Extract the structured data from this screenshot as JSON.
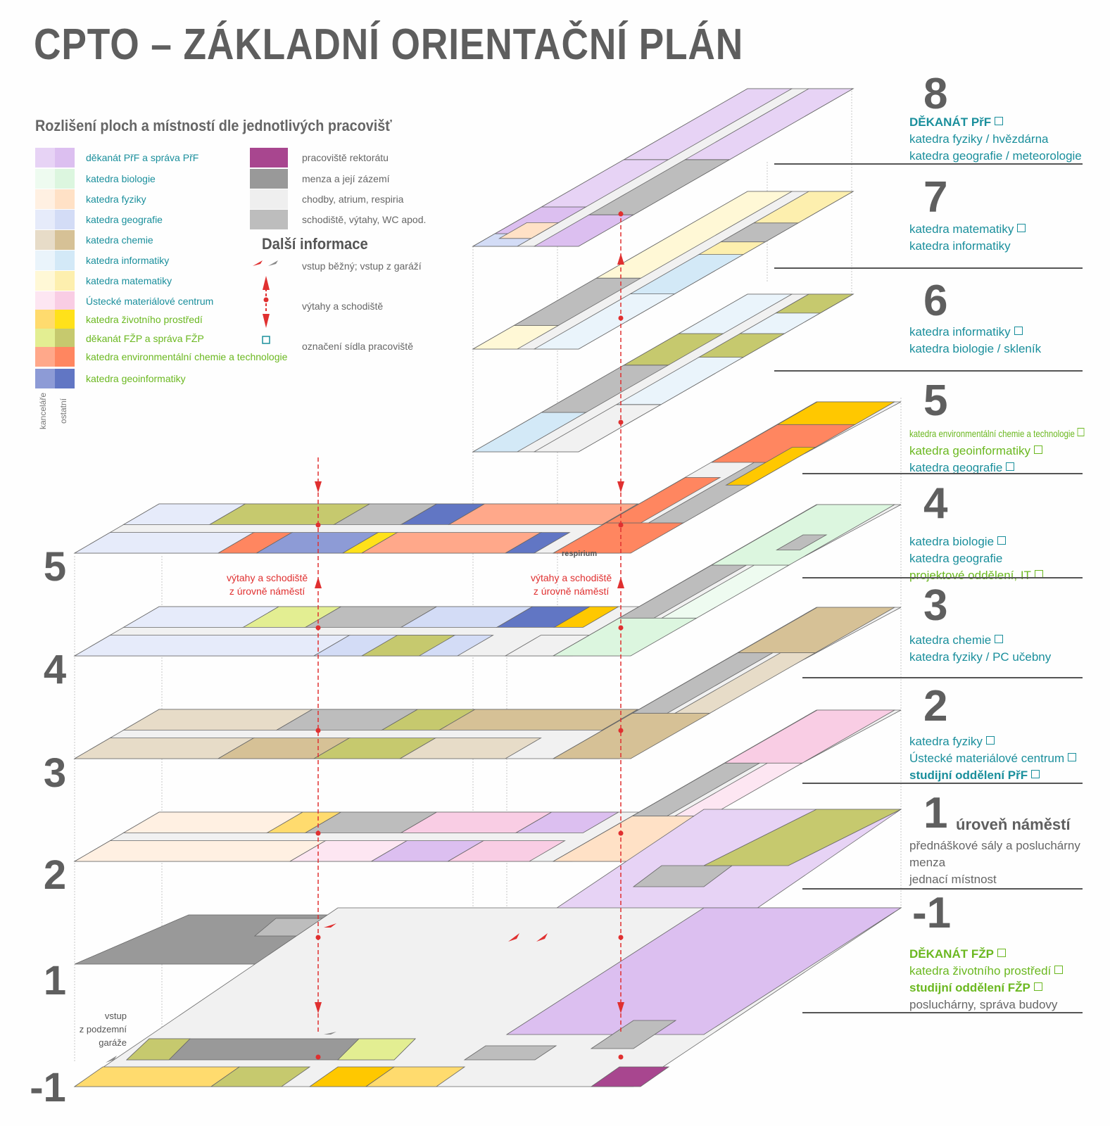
{
  "title": "CPTO – ZÁKLADNÍ ORIENTAČNÍ PLÁN",
  "legend": {
    "heading": "Rozlišení ploch a místností dle jednotlivých pracovišť",
    "col_labels": [
      "kanceláře",
      "ostatní"
    ],
    "items": [
      {
        "label": "děkanát PřF a správa PřF",
        "c1": "#e7d3f5",
        "c2": "#dcbff0",
        "tone": "teal"
      },
      {
        "label": "katedra biologie",
        "c1": "#eefbf0",
        "c2": "#dcf6df",
        "tone": "teal"
      },
      {
        "label": "katedra fyziky",
        "c1": "#fff0e2",
        "c2": "#ffe1c6",
        "tone": "teal"
      },
      {
        "label": "katedra geografie",
        "c1": "#e6ebfa",
        "c2": "#d3dcf6",
        "tone": "teal"
      },
      {
        "label": "katedra chemie",
        "c1": "#e7dcc8",
        "c2": "#d6c196",
        "tone": "teal"
      },
      {
        "label": "katedra informatiky",
        "c1": "#eaf4fb",
        "c2": "#d3e9f7",
        "tone": "teal"
      },
      {
        "label": "katedra matematiky",
        "c1": "#fff8d6",
        "c2": "#fdefae",
        "tone": "teal"
      },
      {
        "label": "Ústecké materiálové centrum",
        "c1": "#fde6f2",
        "c2": "#f9cde4",
        "tone": "teal"
      },
      {
        "label": "katedra životního prostředí",
        "c1": "#ffdb6e",
        "c2": "#ffe11a",
        "tone": "green"
      },
      {
        "label": "děkanát FŽP a správa FŽP",
        "c1": "#e3ee92",
        "c2": "#c6c96e",
        "tone": "green"
      },
      {
        "label": "katedra environmentální chemie a technologie",
        "c1": "#ffa88a",
        "c2": "#ff8660",
        "tone": "green"
      },
      {
        "label": "katedra geoinformatiky",
        "c1": "#8d9bd6",
        "c2": "#6176c4",
        "tone": "green"
      }
    ],
    "other_items": [
      {
        "label": "pracoviště rektorátu",
        "color": "#a8468f"
      },
      {
        "label": "menza a její zázemí",
        "color": "#999999"
      },
      {
        "label": "chodby, atrium, respiria",
        "color": "#efefef"
      },
      {
        "label": "schodiště, výtahy, WC apod.",
        "color": "#bdbdbd"
      }
    ]
  },
  "info": {
    "heading": "Další informace",
    "items": [
      {
        "label": "vstup běžný; vstup z garáží",
        "icon": "entrance-arrows-icon"
      },
      {
        "label": "výtahy a schodiště",
        "icon": "elevator-arrow-icon"
      },
      {
        "label": "označení sídla pracoviště",
        "icon": "square-marker-icon"
      }
    ]
  },
  "left_levels": [
    "5",
    "4",
    "3",
    "2",
    "1",
    "-1"
  ],
  "annotations": {
    "respirium": "respirium",
    "stairs_left": [
      "výtahy a schodiště",
      "z úrovně náměstí"
    ],
    "stairs_right": [
      "výtahy a schodiště",
      "z úrovně náměstí"
    ],
    "garage": [
      "vstup",
      "z podzemní",
      "garáže"
    ]
  },
  "right_floors": [
    {
      "num": "8",
      "lines": [
        {
          "text": "DĚKANÁT PřF",
          "style": "teal-bold",
          "mark": true
        },
        {
          "text": "katedra fyziky / hvězdárna",
          "style": "teal"
        },
        {
          "text": "katedra geografie / meteorologie",
          "style": "teal"
        }
      ]
    },
    {
      "num": "7",
      "lines": [
        {
          "text": "katedra matematiky",
          "style": "teal",
          "mark": true
        },
        {
          "text": "katedra informatiky",
          "style": "teal"
        }
      ]
    },
    {
      "num": "6",
      "lines": [
        {
          "text": "katedra informatiky",
          "style": "teal",
          "mark": true
        },
        {
          "text": "katedra biologie / skleník",
          "style": "teal"
        }
      ]
    },
    {
      "num": "5",
      "lines": [
        {
          "text": "katedra environmentální chemie a technologie",
          "style": "green-small",
          "mark": true
        },
        {
          "text": "katedra geoinformatiky",
          "style": "green",
          "mark": true
        },
        {
          "text": "katedra geografie",
          "style": "teal",
          "mark": true
        }
      ]
    },
    {
      "num": "4",
      "lines": [
        {
          "text": "katedra biologie",
          "style": "teal",
          "mark": true
        },
        {
          "text": "katedra geografie",
          "style": "teal"
        },
        {
          "text": "projektové oddělení, IT",
          "style": "green",
          "mark": true
        }
      ]
    },
    {
      "num": "3",
      "lines": [
        {
          "text": "katedra chemie",
          "style": "teal",
          "mark": true
        },
        {
          "text": "katedra fyziky / PC učebny",
          "style": "teal"
        }
      ]
    },
    {
      "num": "2",
      "lines": [
        {
          "text": "katedra fyziky",
          "style": "teal",
          "mark": true
        },
        {
          "text": "Ústecké materiálové centrum",
          "style": "teal",
          "mark": true
        },
        {
          "text": "studijní oddělení PřF",
          "style": "teal-bold",
          "mark": true
        }
      ]
    },
    {
      "num": "1",
      "suffix": "úroveň náměstí",
      "lines": [
        {
          "text": "přednáškové sály a posluchárny",
          "style": "gray"
        },
        {
          "text": "menza",
          "style": "gray"
        },
        {
          "text": "jednací místnost",
          "style": "gray"
        }
      ]
    },
    {
      "num": "-1",
      "lines": [
        {
          "text": "DĚKANÁT FŽP",
          "style": "green-bold",
          "mark": true
        },
        {
          "text": "katedra životního prostředí",
          "style": "green",
          "mark": true
        },
        {
          "text": "studijní oddělení FŽP",
          "style": "green-bold",
          "mark": true
        },
        {
          "text": "posluchárny, správa budovy",
          "style": "gray"
        }
      ]
    }
  ]
}
